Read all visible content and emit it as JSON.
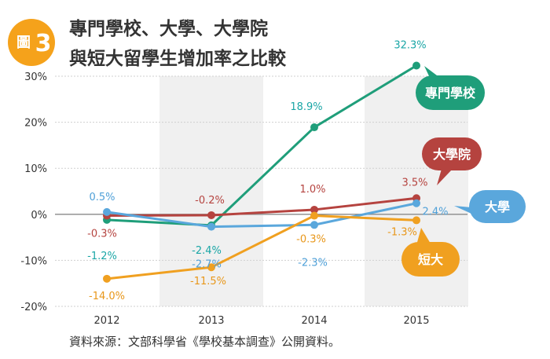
{
  "figure": {
    "badge_char": "圖",
    "badge_num": "3",
    "title_line1": "專門學校、大學、大學院",
    "title_line2": "與短大留學生增加率之比較",
    "source": "資料來源：文部科學省《學校基本調查》公開資料。"
  },
  "chart_data": {
    "type": "line",
    "x": [
      "2012",
      "2013",
      "2014",
      "2015"
    ],
    "ylim": [
      -20,
      30
    ],
    "yticks": [
      -20,
      -10,
      0,
      10,
      20,
      30
    ],
    "ytick_labels": [
      "-20%",
      "-10%",
      "0%",
      "10%",
      "20%",
      "30%"
    ],
    "unit": "%",
    "grid": "horizontal",
    "alternating_column_shading": true,
    "series": [
      {
        "name": "專門學校",
        "color": "#1f9e7a",
        "label_color": "#1aa6a6",
        "values": [
          -1.2,
          -2.4,
          18.9,
          32.3
        ],
        "labels": [
          "-1.2%",
          "-2.4%",
          "18.9%",
          "32.3%"
        ],
        "label_offsets": [
          [
            -6,
            50
          ],
          [
            -6,
            36
          ],
          [
            -10,
            -22
          ],
          [
            -8,
            -22
          ]
        ],
        "callout": "right"
      },
      {
        "name": "大學院",
        "color": "#b5433f",
        "label_color": "#b5433f",
        "values": [
          -0.3,
          -0.2,
          1.0,
          3.5
        ],
        "labels": [
          "-0.3%",
          "-0.2%",
          "1.0%",
          "3.5%"
        ],
        "label_offsets": [
          [
            -6,
            27
          ],
          [
            -2,
            -15
          ],
          [
            -2,
            -22
          ],
          [
            -2,
            -16
          ]
        ],
        "callout": "right"
      },
      {
        "name": "大學",
        "color": "#5aa7dc",
        "label_color": "#4fa0d8",
        "values": [
          0.5,
          -2.7,
          -2.3,
          2.4
        ],
        "labels": [
          "0.5%",
          "-2.7%",
          "-2.3%",
          "2.4%"
        ],
        "label_offsets": [
          [
            -6,
            -15
          ],
          [
            -6,
            52
          ],
          [
            -2,
            52
          ],
          [
            24,
            15
          ]
        ],
        "callout": "right"
      },
      {
        "name": "短大",
        "color": "#f0a020",
        "label_color": "#e8971a",
        "values": [
          -14.0,
          -11.5,
          -0.3,
          -1.3
        ],
        "labels": [
          "-14.0%",
          "-11.5%",
          "-0.3%",
          "-1.3%"
        ],
        "label_offsets": [
          [
            0,
            26
          ],
          [
            -4,
            22
          ],
          [
            -4,
            34
          ],
          [
            -18,
            19
          ]
        ],
        "callout": "right"
      }
    ]
  }
}
